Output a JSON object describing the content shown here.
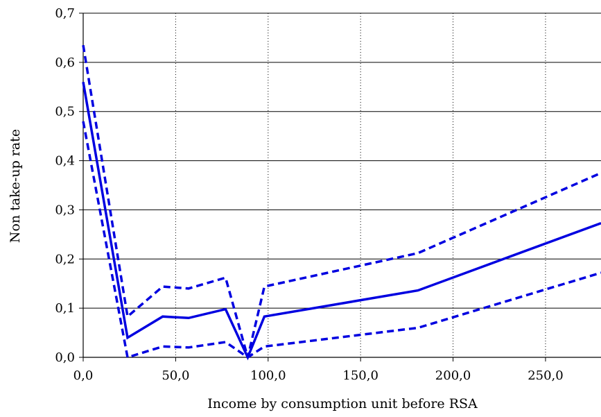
{
  "chart_data": {
    "type": "line",
    "title": "",
    "xlabel": "Income by consumption unit before RSA",
    "ylabel": "Non take-up rate",
    "xlim": [
      0,
      280
    ],
    "ylim": [
      0,
      0.7
    ],
    "x_ticks": [
      "0,0",
      "50,0",
      "100,0",
      "150,0",
      "200,0",
      "250,0"
    ],
    "y_ticks": [
      "0,0",
      "0,1",
      "0,2",
      "0,3",
      "0,4",
      "0,5",
      "0,6",
      "0,7"
    ],
    "x_grid": "dotted",
    "y_grid": "solid",
    "legend": "none",
    "color": "#0000e0",
    "series": [
      {
        "style": "solid",
        "x": [
          0,
          24,
          43,
          57,
          77,
          89,
          98,
          181,
          280
        ],
        "y": [
          0.56,
          0.04,
          0.083,
          0.08,
          0.098,
          0.0,
          0.083,
          0.136,
          0.273
        ]
      },
      {
        "style": "dashed",
        "x": [
          0,
          24,
          43,
          57,
          77,
          89,
          98,
          181,
          280
        ],
        "y": [
          0.635,
          0.083,
          0.144,
          0.14,
          0.162,
          0.0,
          0.144,
          0.212,
          0.375
        ]
      },
      {
        "style": "dashed",
        "x": [
          0,
          24,
          43,
          57,
          77,
          89,
          98,
          181,
          280
        ],
        "y": [
          0.48,
          0.0,
          0.022,
          0.02,
          0.031,
          0.0,
          0.022,
          0.06,
          0.172
        ]
      }
    ]
  }
}
